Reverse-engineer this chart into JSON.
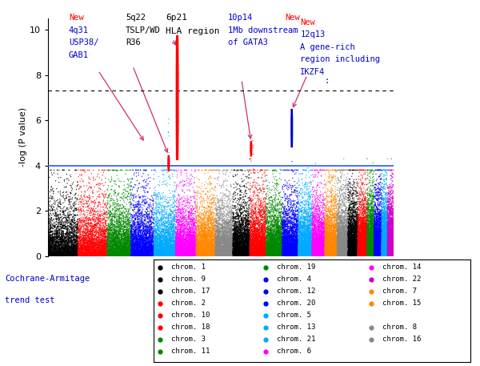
{
  "ylabel": "-log (P value)",
  "ylim": [
    0,
    10.5
  ],
  "yticks": [
    0,
    2,
    4,
    6,
    8,
    10
  ],
  "significance_line": 4.0,
  "dotted_line": 7.3,
  "chrom_colors": {
    "1": "#000000",
    "2": "#ff0000",
    "3": "#008800",
    "4": "#0000ff",
    "5": "#00aaff",
    "6": "#ff00ff",
    "7": "#ff8800",
    "8": "#888888",
    "9": "#000000",
    "10": "#ff0000",
    "11": "#008800",
    "12": "#0000ff",
    "13": "#00aaff",
    "14": "#ff00ff",
    "15": "#ff8800",
    "16": "#888888",
    "17": "#000000",
    "18": "#ff0000",
    "19": "#008800",
    "20": "#0000ff",
    "21": "#00aaff",
    "22": "#cc00cc"
  },
  "chrom_sizes": {
    "1": 249,
    "2": 243,
    "3": 198,
    "4": 191,
    "5": 181,
    "6": 171,
    "7": 159,
    "8": 146,
    "9": 141,
    "10": 135,
    "11": 135,
    "12": 133,
    "13": 115,
    "14": 107,
    "15": 102,
    "16": 90,
    "17": 81,
    "18": 78,
    "19": 59,
    "20": 63,
    "21": 48,
    "22": 51
  },
  "seed": 42,
  "n_per_chrom": 3000,
  "background_color": "#ffffff",
  "legend_entries": [
    [
      "chrom. 1",
      "#000000"
    ],
    [
      "chrom. 9",
      "#000000"
    ],
    [
      "chrom. 17",
      "#000000"
    ],
    [
      "chrom. 2",
      "#ff0000"
    ],
    [
      "chrom. 10",
      "#ff0000"
    ],
    [
      "chrom. 18",
      "#ff0000"
    ],
    [
      "chrom. 3",
      "#008800"
    ],
    [
      "chrom. 11",
      "#008800"
    ],
    [
      "chrom. 19",
      "#008800"
    ],
    [
      "chrom. 4",
      "#0000ff"
    ],
    [
      "chrom. 12",
      "#0000ff"
    ],
    [
      "chrom. 20",
      "#0000ff"
    ],
    [
      "chrom. 5",
      "#00aaff"
    ],
    [
      "chrom. 13",
      "#00aaff"
    ],
    [
      "chrom. 21",
      "#00aaff"
    ],
    [
      "chrom. 6",
      "#ff00ff"
    ],
    [
      "chrom. 14",
      "#ff00ff"
    ],
    [
      "chrom. 22",
      "#cc00cc"
    ],
    [
      "chrom. 7",
      "#ff8800"
    ],
    [
      "chrom. 15",
      "#ff8800"
    ],
    [
      "",
      ""
    ],
    [
      "chrom. 8",
      "#888888"
    ],
    [
      "chrom. 16",
      "#888888"
    ],
    [
      "",
      ""
    ]
  ]
}
